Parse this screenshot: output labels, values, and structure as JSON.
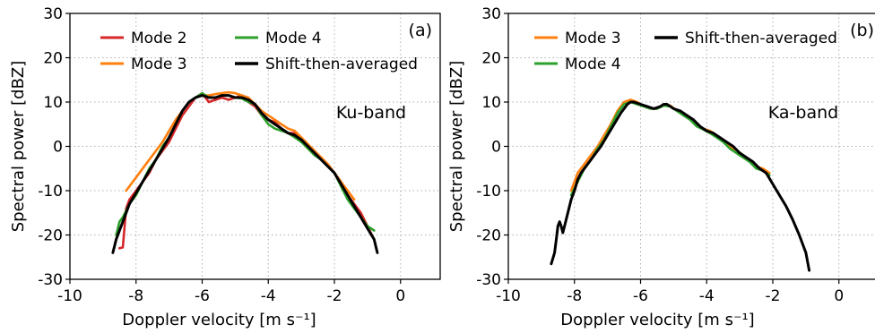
{
  "chart_data": [
    {
      "type": "line",
      "panel_label": "(a)",
      "annotation": "Ku-band",
      "xlabel": "Doppler velocity [m s⁻¹]",
      "ylabel": "Spectral power [dBZ]",
      "xlim": [
        -10,
        1.2
      ],
      "ylim": [
        -30,
        30
      ],
      "xticks": [
        -10,
        -8,
        -6,
        -4,
        -2,
        0
      ],
      "yticks": [
        -30,
        -20,
        -10,
        0,
        10,
        20,
        30
      ],
      "grid": true,
      "legend_position": "top",
      "legend_columns": [
        [
          "Mode 2",
          "Mode 3"
        ],
        [
          "Mode 4",
          "Shift-then-averaged"
        ]
      ],
      "series": [
        {
          "name": "Mode 2",
          "color": "#d62728",
          "width": 2.6,
          "x": [
            -8.5,
            -8.4,
            -8.3,
            -8.2,
            -8.0,
            -7.8,
            -7.6,
            -7.4,
            -7.2,
            -7.0,
            -6.8,
            -6.6,
            -6.4,
            -6.2,
            -6.0,
            -5.8,
            -5.6,
            -5.4,
            -5.2,
            -5.0,
            -4.8,
            -4.6,
            -4.4,
            -4.2,
            -4.0,
            -3.8,
            -3.6,
            -3.4,
            -3.2,
            -3.0,
            -2.8,
            -2.6,
            -2.4,
            -2.2,
            -2.0,
            -1.8,
            -1.6,
            -1.4,
            -1.2,
            -1.0,
            -0.8
          ],
          "y": [
            -23,
            -22.8,
            -14,
            -12,
            -10,
            -8,
            -6,
            -3,
            -1,
            1,
            4,
            7,
            9,
            11,
            12,
            10,
            10.5,
            11,
            10.5,
            11,
            11.5,
            10,
            9,
            7,
            6,
            5.5,
            4,
            3,
            3,
            2,
            0,
            -1.5,
            -3,
            -4,
            -6,
            -8,
            -11,
            -13,
            -15,
            -18,
            -21
          ]
        },
        {
          "name": "Mode 3",
          "color": "#ff7f0e",
          "width": 2.6,
          "x": [
            -8.3,
            -8.2,
            -8.0,
            -7.8,
            -7.6,
            -7.4,
            -7.2,
            -7.0,
            -6.8,
            -6.6,
            -6.4,
            -6.2,
            -6.0,
            -5.8,
            -5.6,
            -5.4,
            -5.2,
            -5.0,
            -4.8,
            -4.6,
            -4.4,
            -4.2,
            -4.0,
            -3.8,
            -3.6,
            -3.4,
            -3.2,
            -3.0,
            -2.8,
            -2.6,
            -2.4,
            -2.2,
            -2.0,
            -1.8,
            -1.6,
            -1.4
          ],
          "y": [
            -10,
            -9,
            -7,
            -5,
            -3,
            -1,
            1,
            3.5,
            6,
            8,
            10,
            11,
            11.5,
            11.5,
            11.8,
            12,
            12.2,
            12,
            11.5,
            11,
            9.5,
            8,
            7,
            6,
            5,
            4,
            3.5,
            2,
            0.5,
            -1,
            -2.5,
            -4,
            -6,
            -8,
            -10,
            -12
          ]
        },
        {
          "name": "Mode 4",
          "color": "#2ca02c",
          "width": 2.6,
          "x": [
            -8.6,
            -8.5,
            -8.4,
            -8.2,
            -8.0,
            -7.8,
            -7.6,
            -7.4,
            -7.2,
            -7.0,
            -6.8,
            -6.6,
            -6.4,
            -6.2,
            -6.0,
            -5.8,
            -5.6,
            -5.4,
            -5.2,
            -5.0,
            -4.8,
            -4.6,
            -4.4,
            -4.2,
            -4.0,
            -3.8,
            -3.6,
            -3.4,
            -3.2,
            -3.0,
            -2.8,
            -2.6,
            -2.4,
            -2.2,
            -2.0,
            -1.8,
            -1.6,
            -1.4,
            -1.2,
            -1.0,
            -0.8
          ],
          "y": [
            -20,
            -17,
            -16,
            -13,
            -11,
            -8,
            -5,
            -3,
            0,
            2,
            5,
            8,
            10,
            11,
            12,
            11,
            11,
            11.5,
            11.5,
            11,
            10.8,
            10,
            9.5,
            7,
            5,
            4,
            3.5,
            3,
            2,
            1,
            -0.5,
            -2,
            -3,
            -4.5,
            -6,
            -9,
            -12,
            -14,
            -16,
            -18,
            -19
          ]
        },
        {
          "name": "Shift-then-averaged",
          "color": "#000000",
          "width": 3,
          "x": [
            -8.7,
            -8.6,
            -8.4,
            -8.2,
            -8.0,
            -7.8,
            -7.6,
            -7.4,
            -7.2,
            -7.0,
            -6.8,
            -6.6,
            -6.4,
            -6.2,
            -6.0,
            -5.8,
            -5.6,
            -5.4,
            -5.2,
            -5.0,
            -4.8,
            -4.6,
            -4.4,
            -4.2,
            -4.0,
            -3.8,
            -3.6,
            -3.4,
            -3.2,
            -3.0,
            -2.8,
            -2.6,
            -2.4,
            -2.2,
            -2.0,
            -1.8,
            -1.6,
            -1.4,
            -1.2,
            -1.0,
            -0.8,
            -0.7
          ],
          "y": [
            -24,
            -21,
            -17,
            -13,
            -10.5,
            -8,
            -5.5,
            -3,
            -0.5,
            2,
            5,
            8,
            10,
            11,
            11.5,
            11,
            11,
            11.5,
            11.5,
            11,
            11,
            10.5,
            9.5,
            7.5,
            6,
            5,
            4,
            3,
            2.5,
            1.5,
            0,
            -1.5,
            -3,
            -4.5,
            -6,
            -8.5,
            -11,
            -13.5,
            -16,
            -18.5,
            -21,
            -24
          ]
        }
      ]
    },
    {
      "type": "line",
      "panel_label": "(b)",
      "annotation": "Ka-band",
      "xlabel": "Doppler velocity [m s⁻¹]",
      "ylabel": "Spectral power [dBZ]",
      "xlim": [
        -10,
        1.2
      ],
      "ylim": [
        -30,
        30
      ],
      "xticks": [
        -10,
        -8,
        -6,
        -4,
        -2,
        0
      ],
      "yticks": [
        -30,
        -20,
        -10,
        0,
        10,
        20,
        30
      ],
      "grid": true,
      "legend_position": "top",
      "legend_columns": [
        [
          "Mode 3",
          "Mode 4"
        ],
        [
          "Shift-then-averaged"
        ]
      ],
      "series": [
        {
          "name": "Mode 3",
          "color": "#ff7f0e",
          "width": 2.6,
          "x": [
            -8.1,
            -7.9,
            -7.7,
            -7.5,
            -7.3,
            -7.1,
            -6.9,
            -6.7,
            -6.5,
            -6.3,
            -6.1,
            -5.9,
            -5.7,
            -5.5,
            -5.3,
            -5.1,
            -4.9,
            -4.7,
            -4.5,
            -4.3,
            -4.1,
            -3.9,
            -3.7,
            -3.5,
            -3.3,
            -3.1,
            -2.9,
            -2.7,
            -2.5,
            -2.3,
            -2.1
          ],
          "y": [
            -10,
            -6,
            -4,
            -2,
            0,
            2.5,
            5,
            8,
            10,
            10.5,
            10,
            9,
            8.5,
            8.5,
            9.5,
            9.2,
            8,
            7.5,
            6.5,
            5,
            4,
            3.5,
            2.5,
            1.5,
            0,
            -0.8,
            -2,
            -3,
            -4.5,
            -5,
            -6
          ]
        },
        {
          "name": "Mode 4",
          "color": "#2ca02c",
          "width": 2.6,
          "x": [
            -8.1,
            -7.9,
            -7.7,
            -7.5,
            -7.3,
            -7.1,
            -6.9,
            -6.7,
            -6.5,
            -6.3,
            -6.1,
            -5.9,
            -5.7,
            -5.5,
            -5.3,
            -5.1,
            -4.9,
            -4.7,
            -4.5,
            -4.3,
            -4.1,
            -3.9,
            -3.7,
            -3.5,
            -3.3,
            -3.1,
            -2.9,
            -2.7,
            -2.5,
            -2.3,
            -2.1
          ],
          "y": [
            -11,
            -8,
            -5,
            -3,
            -0.5,
            1.5,
            4.5,
            7.5,
            9.5,
            10,
            9.5,
            9,
            8.5,
            8.5,
            9.2,
            9,
            8,
            7,
            6,
            4.5,
            3.8,
            3,
            2,
            1,
            -0.5,
            -1.5,
            -2.5,
            -3.5,
            -5,
            -5.5,
            -6.5
          ]
        },
        {
          "name": "Shift-then-averaged",
          "color": "#000000",
          "width": 3,
          "x": [
            -8.7,
            -8.6,
            -8.55,
            -8.5,
            -8.45,
            -8.4,
            -8.35,
            -8.3,
            -8.2,
            -8.1,
            -8.0,
            -7.9,
            -7.8,
            -7.6,
            -7.4,
            -7.2,
            -7.0,
            -6.8,
            -6.6,
            -6.4,
            -6.3,
            -6.2,
            -6.0,
            -5.8,
            -5.6,
            -5.4,
            -5.3,
            -5.2,
            -5.0,
            -4.8,
            -4.6,
            -4.4,
            -4.2,
            -4.0,
            -3.8,
            -3.6,
            -3.4,
            -3.2,
            -3.0,
            -2.8,
            -2.6,
            -2.4,
            -2.2,
            -2.0,
            -1.8,
            -1.6,
            -1.4,
            -1.2,
            -1.0,
            -0.9
          ],
          "y": [
            -26.5,
            -24,
            -21,
            -18,
            -17,
            -18,
            -19.5,
            -18,
            -15,
            -12,
            -10,
            -7.5,
            -6,
            -4,
            -2,
            0,
            2.5,
            5,
            7.5,
            9.5,
            10,
            10,
            9.5,
            9,
            8.5,
            9,
            9.5,
            9.5,
            8.5,
            8,
            7,
            6,
            4.5,
            3.5,
            3,
            2,
            1,
            0,
            -1.5,
            -2.5,
            -3.5,
            -5,
            -6,
            -8.5,
            -11,
            -13.5,
            -16.5,
            -20,
            -24,
            -28
          ]
        }
      ]
    }
  ]
}
